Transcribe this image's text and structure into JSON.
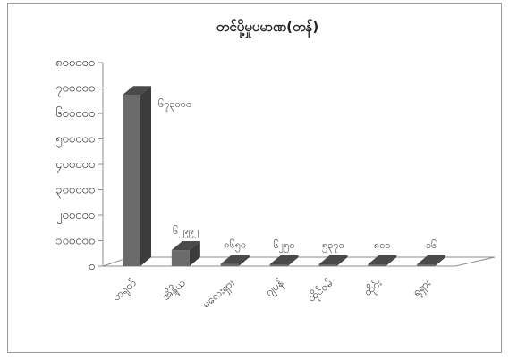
{
  "chart_data": {
    "type": "bar",
    "title": "တင်ပို့မှုပမာဏ(တန်)",
    "xlabel": "",
    "ylabel": "",
    "categories": [
      "တရုတ်",
      "အိန္ဒိယ",
      "မလေးရှား",
      "ဂျပန်",
      "ထိုင်ဝမ်",
      "ထိုင်း",
      "ရုရှား"
    ],
    "values": [
      673000,
      62992,
      8650,
      6250,
      5370,
      800,
      16
    ],
    "data_labels": [
      "၆၇၃၀၀၀",
      "၆၂၉၉၂",
      "၈၆၅၀",
      "၆၂၅၀",
      "၅၃၇၀",
      "၈၀၀",
      "၁၆"
    ],
    "ylim": [
      0,
      800000
    ],
    "yticks": [
      0,
      100000,
      200000,
      300000,
      400000,
      500000,
      600000,
      700000,
      800000
    ],
    "ytick_labels": [
      "၀",
      "၁၀၀၀၀၀",
      "၂၀၀၀၀၀",
      "၃၀၀၀၀၀",
      "၄၀၀၀၀၀",
      "၅၀၀၀၀၀",
      "၆၀၀၀၀၀",
      "၇၀၀၀၀၀",
      "၈၀၀၀၀၀"
    ],
    "grid": false,
    "legend": "none",
    "style": "3d-column",
    "colors": {
      "bar_front": "#6b6b6b",
      "bar_top": "#4a4a4a",
      "bar_side": "#3c3c3c",
      "floor": "#ffffff",
      "axis": "#8c8c8c"
    }
  }
}
